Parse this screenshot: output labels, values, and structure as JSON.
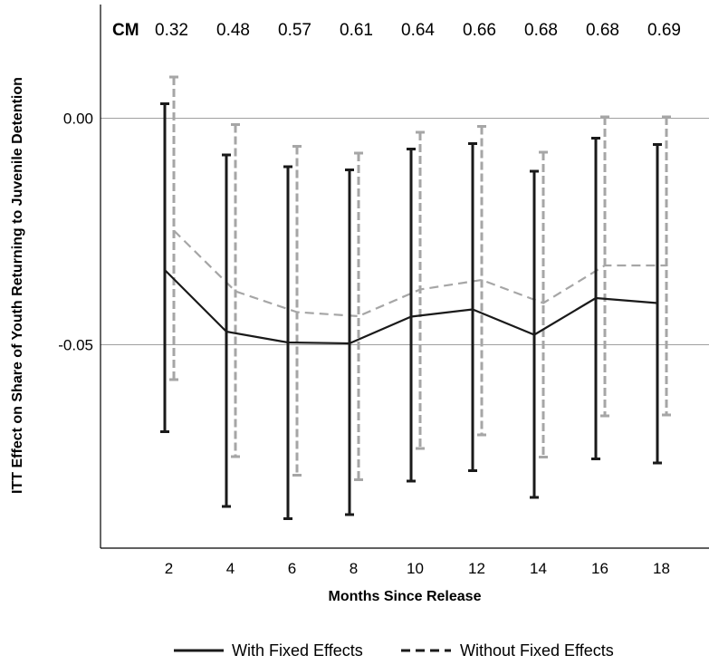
{
  "chart_data": {
    "type": "line",
    "xlabel": "Months Since Release",
    "ylabel": "ITT Effect on Share of Youth Returning to Juvenile Detention",
    "x": [
      2,
      4,
      6,
      8,
      10,
      12,
      14,
      16,
      18
    ],
    "x_ticks": [
      "2",
      "4",
      "6",
      "8",
      "10",
      "12",
      "14",
      "16",
      "18"
    ],
    "xlim": [
      0,
      20.5
    ],
    "ylim": [
      -0.0955,
      0.0255
    ],
    "y_ticks": [
      0.0,
      -0.05
    ],
    "y_tick_labels": [
      "0.00",
      "-0.05"
    ],
    "grid": "horizontal lines at y ticks",
    "legend_position": "bottom",
    "top_annotation": {
      "label": "CM",
      "values": [
        "0.32",
        "0.48",
        "0.57",
        "0.61",
        "0.64",
        "0.66",
        "0.68",
        "0.68",
        "0.69"
      ]
    },
    "series": [
      {
        "name": "With Fixed Effects",
        "style": "solid",
        "line_color": "#1a1a1a",
        "bar_color": "#1a1a1a",
        "y": [
          -0.0335,
          -0.0471,
          -0.0495,
          -0.0497,
          -0.0438,
          -0.0422,
          -0.0478,
          -0.0397,
          -0.0408
        ],
        "lower": [
          -0.0692,
          -0.0857,
          -0.0884,
          -0.0875,
          -0.0801,
          -0.0778,
          -0.0837,
          -0.0752,
          -0.0761
        ],
        "upper": [
          0.0032,
          -0.0081,
          -0.0107,
          -0.0114,
          -0.0068,
          -0.0056,
          -0.0117,
          -0.0044,
          -0.0058
        ]
      },
      {
        "name": "Without Fixed Effects",
        "style": "dashed",
        "line_color": "#a6a6a6",
        "bar_color": "#a6a6a6",
        "y": [
          -0.0248,
          -0.0382,
          -0.0428,
          -0.0437,
          -0.0378,
          -0.0357,
          -0.0408,
          -0.0325,
          -0.0325
        ],
        "lower": [
          -0.0577,
          -0.0747,
          -0.0788,
          -0.0798,
          -0.0729,
          -0.0699,
          -0.0748,
          -0.0657,
          -0.0655
        ],
        "upper": [
          0.0091,
          -0.0014,
          -0.0062,
          -0.0077,
          -0.0031,
          -0.0018,
          -0.0075,
          0.0003,
          0.0003
        ]
      }
    ]
  }
}
